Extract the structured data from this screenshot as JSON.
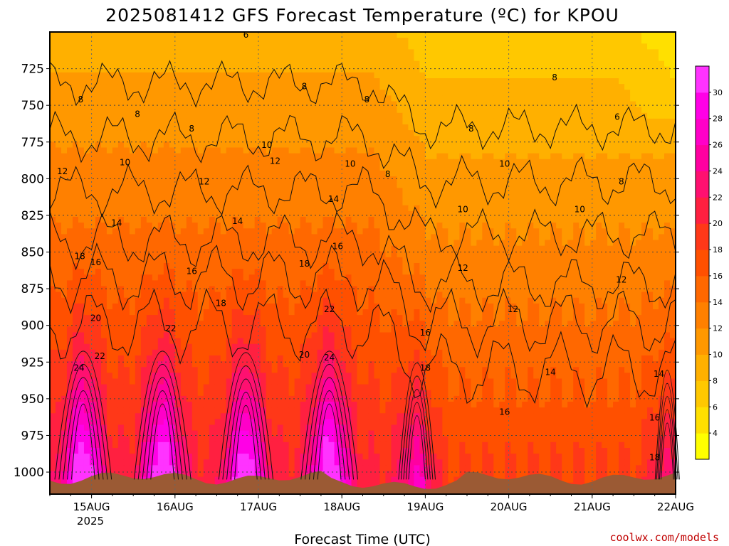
{
  "chart_data": {
    "type": "heatmap",
    "title": "2025081412 GFS Forecast Temperature (ºC) for KPOU",
    "xlabel": "Forecast Time (UTC)",
    "credit": "coolwx.com/models",
    "ylim": [
      700,
      1015
    ],
    "y_ticks": [
      "725",
      "750",
      "775",
      "800",
      "825",
      "850",
      "875",
      "900",
      "925",
      "950",
      "975",
      "1000"
    ],
    "x_ticks": [
      "15AUG",
      "16AUG",
      "17AUG",
      "18AUG",
      "19AUG",
      "20AUG",
      "21AUG",
      "22AUG"
    ],
    "x_tick_sublabel": "2025",
    "xlim_days": [
      14.5,
      22.0
    ],
    "grid": true,
    "colorbar": {
      "levels": [
        "4",
        "6",
        "8",
        "10",
        "12",
        "14",
        "16",
        "18",
        "20",
        "22",
        "24",
        "26",
        "28",
        "30"
      ],
      "colors": [
        "#ffff00",
        "#ffe000",
        "#ffc800",
        "#ffb000",
        "#ff9800",
        "#ff8000",
        "#ff6800",
        "#ff5000",
        "#ff3818",
        "#ff2040",
        "#ff1070",
        "#ff00a0",
        "#ff00c8",
        "#ff00e6",
        "#ff33ff"
      ]
    },
    "contour_labels": [
      {
        "text": "6",
        "t": 16.85,
        "p": 702
      },
      {
        "text": "8",
        "t": 14.87,
        "p": 746
      },
      {
        "text": "8",
        "t": 15.55,
        "p": 756
      },
      {
        "text": "8",
        "t": 16.2,
        "p": 766
      },
      {
        "text": "8",
        "t": 17.55,
        "p": 737
      },
      {
        "text": "8",
        "t": 18.3,
        "p": 746
      },
      {
        "text": "8",
        "t": 19.55,
        "p": 766
      },
      {
        "text": "8",
        "t": 20.55,
        "p": 731
      },
      {
        "text": "6",
        "t": 21.3,
        "p": 758
      },
      {
        "text": "8",
        "t": 18.55,
        "p": 797
      },
      {
        "text": "8",
        "t": 21.35,
        "p": 802
      },
      {
        "text": "10",
        "t": 17.1,
        "p": 777
      },
      {
        "text": "10",
        "t": 15.4,
        "p": 789
      },
      {
        "text": "10",
        "t": 18.1,
        "p": 790
      },
      {
        "text": "10",
        "t": 19.95,
        "p": 790
      },
      {
        "text": "10",
        "t": 19.45,
        "p": 821
      },
      {
        "text": "10",
        "t": 20.85,
        "p": 821
      },
      {
        "text": "12",
        "t": 14.65,
        "p": 795
      },
      {
        "text": "12",
        "t": 16.35,
        "p": 802
      },
      {
        "text": "12",
        "t": 17.2,
        "p": 788
      },
      {
        "text": "12",
        "t": 19.45,
        "p": 861
      },
      {
        "text": "12",
        "t": 20.05,
        "p": 889
      },
      {
        "text": "12",
        "t": 21.35,
        "p": 869
      },
      {
        "text": "14",
        "t": 15.3,
        "p": 830
      },
      {
        "text": "14",
        "t": 16.75,
        "p": 829
      },
      {
        "text": "14",
        "t": 17.9,
        "p": 814
      },
      {
        "text": "14",
        "t": 20.5,
        "p": 932
      },
      {
        "text": "14",
        "t": 21.8,
        "p": 933
      },
      {
        "text": "16",
        "t": 15.05,
        "p": 857
      },
      {
        "text": "16",
        "t": 16.2,
        "p": 863
      },
      {
        "text": "16",
        "t": 17.95,
        "p": 846
      },
      {
        "text": "16",
        "t": 19.0,
        "p": 905
      },
      {
        "text": "16",
        "t": 19.95,
        "p": 959
      },
      {
        "text": "16",
        "t": 21.75,
        "p": 963
      },
      {
        "text": "18",
        "t": 14.86,
        "p": 853
      },
      {
        "text": "18",
        "t": 16.55,
        "p": 885
      },
      {
        "text": "18",
        "t": 17.55,
        "p": 858
      },
      {
        "text": "18",
        "t": 19.0,
        "p": 929
      },
      {
        "text": "18",
        "t": 21.75,
        "p": 990
      },
      {
        "text": "20",
        "t": 15.05,
        "p": 895
      },
      {
        "text": "20",
        "t": 17.55,
        "p": 920
      },
      {
        "text": "22",
        "t": 15.1,
        "p": 921
      },
      {
        "text": "22",
        "t": 15.95,
        "p": 902
      },
      {
        "text": "22",
        "t": 17.85,
        "p": 889
      },
      {
        "text": "24",
        "t": 14.85,
        "p": 929
      },
      {
        "text": "24",
        "t": 17.85,
        "p": 922
      }
    ]
  }
}
